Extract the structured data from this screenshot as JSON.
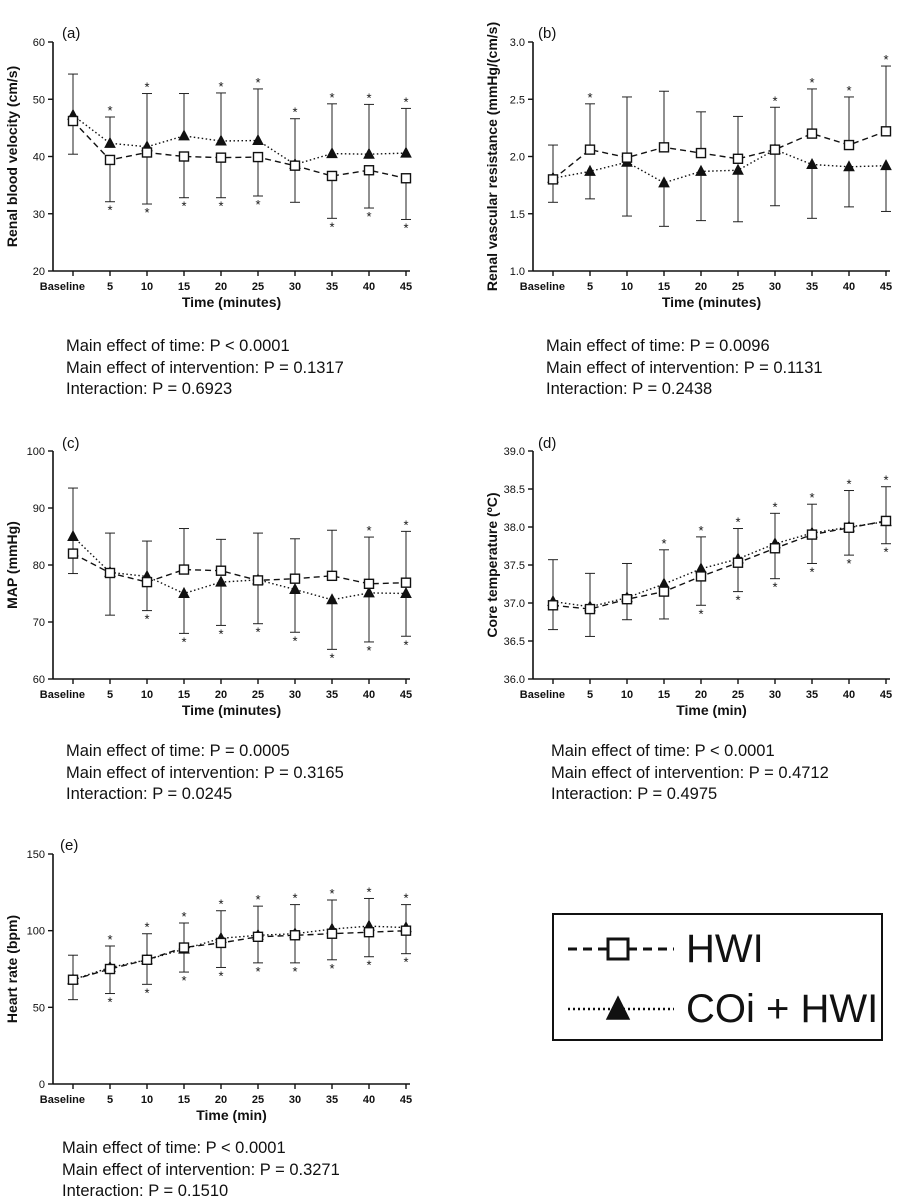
{
  "legend": [
    {
      "name": "HWI",
      "marker": "square",
      "line": "dashed"
    },
    {
      "name": "COi + HWI",
      "marker": "triangle",
      "line": "dotted"
    }
  ],
  "panels_stats": [
    [
      "Main effect of time: P < 0.0001",
      "Main effect of intervention: P = 0.1317",
      "Interaction: P = 0.6923"
    ],
    [
      "Main effect of time: P = 0.0096",
      "Main effect of intervention: P = 0.1131",
      "Interaction: P = 0.2438"
    ],
    [
      "Main effect of time: P = 0.0005",
      "Main effect of intervention: P = 0.3165",
      "Interaction: P = 0.0245"
    ],
    [
      "Main effect of time: P < 0.0001",
      "Main effect of intervention: P = 0.4712",
      "Interaction: P = 0.4975"
    ],
    [
      "Main effect of time: P < 0.0001",
      "Main effect of intervention: P = 0.3271",
      "Interaction: P = 0.1510"
    ]
  ],
  "chart_data": [
    {
      "type": "line",
      "panel_label": "(a)",
      "categories": [
        "Baseline",
        "5",
        "10",
        "15",
        "20",
        "25",
        "30",
        "35",
        "40",
        "45"
      ],
      "xlabel": "Time (minutes)",
      "ylabel": "Renal blood velocity (cm/s)",
      "ylim": [
        20,
        60
      ],
      "yticks": [
        20,
        30,
        40,
        50,
        60
      ],
      "ytick_labels": [
        "20",
        "30",
        "40",
        "50",
        "60"
      ],
      "series": [
        {
          "name": "HWI",
          "values": [
            46.2,
            39.4,
            40.7,
            40.0,
            39.8,
            39.9,
            38.4,
            36.6,
            37.6,
            36.2
          ],
          "err_lo": [
            5.8,
            7.3,
            9,
            7.2,
            7,
            6.8,
            6.4,
            7.4,
            6.6,
            7.2
          ]
        },
        {
          "name": "COi + HWI",
          "values": [
            47.2,
            42.3,
            41.7,
            43.6,
            42.7,
            42.8,
            38.6,
            40.5,
            40.4,
            40.6
          ],
          "err_hi": [
            7.2,
            4.6,
            9.3,
            7.4,
            8.4,
            9.0,
            8.0,
            8.7,
            8.7,
            7.8
          ]
        }
      ],
      "stars_top": [
        false,
        true,
        true,
        false,
        true,
        true,
        true,
        true,
        true,
        true
      ],
      "stars_bottom": [
        false,
        true,
        true,
        true,
        true,
        true,
        false,
        true,
        true,
        true
      ]
    },
    {
      "type": "line",
      "panel_label": "(b)",
      "categories": [
        "Baseline",
        "5",
        "10",
        "15",
        "20",
        "25",
        "30",
        "35",
        "40",
        "45"
      ],
      "xlabel": "Time (minutes)",
      "ylabel": "Renal vascular resistance (mmHg/(cm/s)",
      "ylim": [
        1.0,
        3.0
      ],
      "yticks": [
        1.0,
        1.5,
        2.0,
        2.5,
        3.0
      ],
      "ytick_labels": [
        "1.0",
        "1.5",
        "2.0",
        "2.5",
        "3.0"
      ],
      "series": [
        {
          "name": "HWI",
          "values": [
            1.8,
            2.06,
            1.99,
            2.08,
            2.03,
            1.98,
            2.06,
            2.2,
            2.1,
            2.22
          ],
          "err_hi": [
            0.3,
            0.4,
            0.53,
            0.49,
            0.36,
            0.37,
            0.37,
            0.39,
            0.42,
            0.57
          ]
        },
        {
          "name": "COi + HWI",
          "values": [
            1.81,
            1.87,
            1.95,
            1.77,
            1.87,
            1.88,
            2.06,
            1.93,
            1.91,
            1.92
          ],
          "err_lo": [
            0.21,
            0.24,
            0.47,
            0.38,
            0.43,
            0.45,
            0.49,
            0.47,
            0.35,
            0.4
          ]
        }
      ],
      "stars_top": [
        false,
        true,
        false,
        false,
        false,
        false,
        true,
        true,
        true,
        true
      ],
      "stars_bottom": [
        false,
        false,
        false,
        false,
        false,
        false,
        false,
        false,
        false,
        false
      ]
    },
    {
      "type": "line",
      "panel_label": "(c)",
      "categories": [
        "Baseline",
        "5",
        "10",
        "15",
        "20",
        "25",
        "30",
        "35",
        "40",
        "45"
      ],
      "xlabel": "Time (minutes)",
      "ylabel": "MAP (mmHg)",
      "ylim": [
        60,
        100
      ],
      "yticks": [
        60,
        70,
        80,
        90,
        100
      ],
      "ytick_labels": [
        "60",
        "70",
        "80",
        "90",
        "100"
      ],
      "series": [
        {
          "name": "HWI",
          "values": [
            82.0,
            78.6,
            77.0,
            79.2,
            79.0,
            77.3,
            77.6,
            78.1,
            76.7,
            76.9
          ],
          "err_hi": [
            11.5,
            7.0,
            7.2,
            7.2,
            5.5,
            8.3,
            7.0,
            8.0,
            8.2,
            9.0
          ]
        },
        {
          "name": "COi + HWI",
          "values": [
            85.0,
            78.7,
            78.0,
            75.0,
            77.0,
            77.4,
            75.7,
            73.9,
            75.1,
            75.0
          ],
          "err_lo": [
            6.5,
            7.5,
            6.0,
            7.0,
            7.6,
            7.7,
            7.5,
            8.7,
            8.6,
            7.5
          ]
        }
      ],
      "stars_top": [
        false,
        false,
        false,
        false,
        false,
        false,
        false,
        false,
        true,
        true
      ],
      "stars_bottom": [
        false,
        false,
        true,
        true,
        true,
        true,
        true,
        true,
        true,
        true
      ]
    },
    {
      "type": "line",
      "panel_label": "(d)",
      "categories": [
        "Baseline",
        "5",
        "10",
        "15",
        "20",
        "25",
        "30",
        "35",
        "40",
        "45"
      ],
      "xlabel": "Time (min)",
      "ylabel": "Core temperature (ºC)",
      "ylim": [
        36.0,
        39.0
      ],
      "yticks": [
        36.0,
        36.5,
        37.0,
        37.5,
        38.0,
        38.5,
        39.0
      ],
      "ytick_labels": [
        "36.0",
        "36.5",
        "37.0",
        "37.5",
        "38.0",
        "38.5",
        "39.0"
      ],
      "series": [
        {
          "name": "HWI",
          "values": [
            36.97,
            36.92,
            37.05,
            37.15,
            37.35,
            37.53,
            37.72,
            37.9,
            37.99,
            38.08
          ],
          "err_lo": [
            0.32,
            0.36,
            0.27,
            0.36,
            0.38,
            0.38,
            0.4,
            0.38,
            0.36,
            0.3
          ]
        },
        {
          "name": "COi + HWI",
          "values": [
            37.02,
            36.95,
            37.07,
            37.25,
            37.45,
            37.58,
            37.78,
            37.92,
            38.0,
            38.07
          ],
          "err_hi": [
            0.55,
            0.44,
            0.45,
            0.45,
            0.42,
            0.4,
            0.4,
            0.38,
            0.48,
            0.46
          ]
        }
      ],
      "stars_top": [
        false,
        false,
        false,
        true,
        true,
        true,
        true,
        true,
        true,
        true
      ],
      "stars_bottom": [
        false,
        false,
        false,
        false,
        true,
        true,
        true,
        true,
        true,
        true
      ]
    },
    {
      "type": "line",
      "panel_label": "(e)",
      "categories": [
        "Baseline",
        "5",
        "10",
        "15",
        "20",
        "25",
        "30",
        "35",
        "40",
        "45"
      ],
      "xlabel": "Time (min)",
      "ylabel": "Heart rate (bpm)",
      "ylim": [
        0,
        150
      ],
      "yticks": [
        0,
        50,
        100,
        150
      ],
      "ytick_labels": [
        "0",
        "50",
        "100",
        "150"
      ],
      "series": [
        {
          "name": "HWI",
          "values": [
            68,
            75,
            81,
            89,
            92,
            96,
            97,
            98,
            99,
            100
          ],
          "err_lo": [
            13,
            16,
            16,
            16,
            16,
            17,
            18,
            17,
            16,
            15
          ]
        },
        {
          "name": "COi + HWI",
          "values": [
            68,
            76,
            81,
            88,
            95,
            97,
            98,
            101,
            103,
            102
          ],
          "err_hi": [
            16,
            14,
            17,
            17,
            18,
            19,
            19,
            19,
            18,
            15
          ]
        }
      ],
      "stars_top": [
        false,
        true,
        true,
        true,
        true,
        true,
        true,
        true,
        true,
        true
      ],
      "stars_bottom": [
        false,
        true,
        true,
        true,
        true,
        true,
        true,
        true,
        true,
        true
      ]
    }
  ]
}
